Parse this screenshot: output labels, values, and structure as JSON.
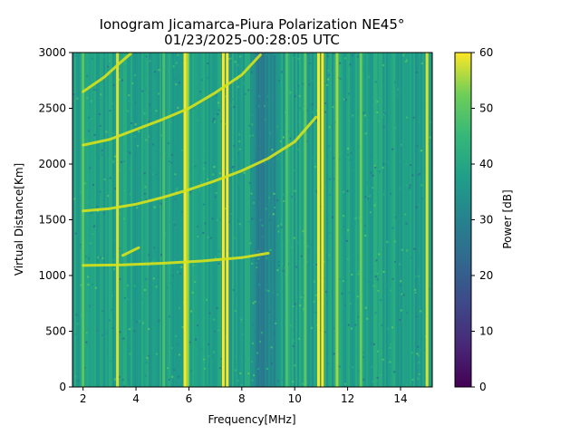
{
  "chart_data": {
    "type": "heatmap",
    "title_line1": "Ionogram Jicamarca-Piura Polarization NE45°",
    "title_line2": "01/23/2025-00:28:05 UTC",
    "xlabel": "Frequency[MHz]",
    "ylabel": "Virtual Distance[Km]",
    "colorbar_label": "Power [dB]",
    "xlim": [
      1.6,
      15.2
    ],
    "ylim": [
      0,
      3000
    ],
    "clim": [
      0,
      60
    ],
    "colormap": "viridis",
    "x_ticks": [
      2,
      4,
      6,
      8,
      10,
      12,
      14
    ],
    "x_tick_labels": [
      "2",
      "4",
      "6",
      "8",
      "10",
      "12",
      "14"
    ],
    "y_ticks": [
      0,
      500,
      1000,
      1500,
      2000,
      2500,
      3000
    ],
    "y_tick_labels": [
      "0",
      "500",
      "1000",
      "1500",
      "2000",
      "2500",
      "3000"
    ],
    "colorbar_ticks": [
      0,
      10,
      20,
      30,
      40,
      50,
      60
    ],
    "colorbar_tick_labels": [
      "0",
      "10",
      "20",
      "30",
      "40",
      "50",
      "60"
    ],
    "background_level_db": 38,
    "vertical_interference_lines": [
      {
        "freq": 2.0,
        "power": 50
      },
      {
        "freq": 3.3,
        "power": 58
      },
      {
        "freq": 5.05,
        "power": 48
      },
      {
        "freq": 5.85,
        "power": 60
      },
      {
        "freq": 5.95,
        "power": 55
      },
      {
        "freq": 7.3,
        "power": 60
      },
      {
        "freq": 7.45,
        "power": 60
      },
      {
        "freq": 9.7,
        "power": 48
      },
      {
        "freq": 10.4,
        "power": 50
      },
      {
        "freq": 10.9,
        "power": 60
      },
      {
        "freq": 11.05,
        "power": 60
      },
      {
        "freq": 11.6,
        "power": 55
      },
      {
        "freq": 12.5,
        "power": 52
      },
      {
        "freq": 15.0,
        "power": 58
      }
    ],
    "echo_traces": [
      {
        "name": "",
        "points": [
          [
            2.0,
            1090
          ],
          [
            3.5,
            1095
          ],
          [
            5.0,
            1110
          ],
          [
            6.5,
            1130
          ],
          [
            8.0,
            1160
          ],
          [
            9.0,
            1200
          ]
        ]
      },
      {
        "name": "",
        "points": [
          [
            2.0,
            1580
          ],
          [
            3.0,
            1600
          ],
          [
            4.0,
            1640
          ],
          [
            5.0,
            1700
          ],
          [
            6.0,
            1770
          ],
          [
            7.0,
            1850
          ],
          [
            8.0,
            1940
          ],
          [
            9.0,
            2050
          ],
          [
            10.0,
            2200
          ],
          [
            10.8,
            2420
          ]
        ]
      },
      {
        "name": "",
        "points": [
          [
            2.0,
            2170
          ],
          [
            3.0,
            2220
          ],
          [
            4.0,
            2310
          ],
          [
            5.0,
            2400
          ],
          [
            6.0,
            2500
          ],
          [
            7.0,
            2640
          ],
          [
            8.0,
            2800
          ],
          [
            8.7,
            2980
          ]
        ]
      },
      {
        "name": "",
        "points": [
          [
            2.0,
            2650
          ],
          [
            2.8,
            2780
          ],
          [
            3.5,
            2930
          ],
          [
            3.8,
            2990
          ]
        ]
      },
      {
        "name": "",
        "points": [
          [
            3.5,
            1180
          ],
          [
            4.1,
            1250
          ]
        ]
      }
    ]
  }
}
